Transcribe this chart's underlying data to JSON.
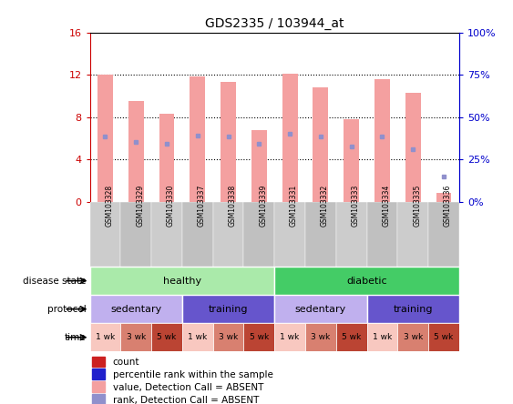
{
  "title": "GDS2335 / 103944_at",
  "samples": [
    "GSM103328",
    "GSM103329",
    "GSM103330",
    "GSM103337",
    "GSM103338",
    "GSM103339",
    "GSM103331",
    "GSM103332",
    "GSM103333",
    "GSM103334",
    "GSM103335",
    "GSM103336"
  ],
  "bar_values": [
    12.0,
    9.5,
    8.3,
    11.8,
    11.3,
    6.8,
    12.1,
    10.8,
    7.8,
    11.6,
    10.3,
    0.9
  ],
  "rank_values": [
    6.2,
    5.7,
    5.5,
    6.3,
    6.2,
    5.5,
    6.4,
    6.2,
    5.2,
    6.2,
    5.0,
    2.4
  ],
  "ylim_left": [
    0,
    16
  ],
  "ylim_right": [
    0,
    100
  ],
  "yticks_left": [
    0,
    4,
    8,
    12,
    16
  ],
  "yticks_right": [
    0,
    25,
    50,
    75,
    100
  ],
  "ytick_labels_left": [
    "0",
    "4",
    "8",
    "12",
    "16"
  ],
  "ytick_labels_right": [
    "0%",
    "25%",
    "50%",
    "75%",
    "100%"
  ],
  "bar_color": "#f4a0a0",
  "rank_color": "#9090cc",
  "disease_state_labels": [
    {
      "label": "healthy",
      "start": 0,
      "end": 6,
      "color": "#aaeaaa"
    },
    {
      "label": "diabetic",
      "start": 6,
      "end": 12,
      "color": "#44cc66"
    }
  ],
  "protocol_labels": [
    {
      "label": "sedentary",
      "start": 0,
      "end": 3,
      "color": "#c0b0ee"
    },
    {
      "label": "training",
      "start": 3,
      "end": 6,
      "color": "#6655cc"
    },
    {
      "label": "sedentary",
      "start": 6,
      "end": 9,
      "color": "#c0b0ee"
    },
    {
      "label": "training",
      "start": 9,
      "end": 12,
      "color": "#6655cc"
    }
  ],
  "time_labels": [
    "1 wk",
    "3 wk",
    "5 wk",
    "1 wk",
    "3 wk",
    "5 wk",
    "1 wk",
    "3 wk",
    "5 wk",
    "1 wk",
    "3 wk",
    "5 wk"
  ],
  "time_colors": [
    "#f8c8c0",
    "#d88070",
    "#bb4433",
    "#f8c8c0",
    "#d88070",
    "#bb4433",
    "#f8c8c0",
    "#d88070",
    "#bb4433",
    "#f8c8c0",
    "#d88070",
    "#bb4433"
  ],
  "legend_items": [
    {
      "color": "#cc2020",
      "label": "count",
      "marker": "s"
    },
    {
      "color": "#2020cc",
      "label": "percentile rank within the sample",
      "marker": "s"
    },
    {
      "color": "#f4a0a0",
      "label": "value, Detection Call = ABSENT",
      "marker": "s"
    },
    {
      "color": "#9090cc",
      "label": "rank, Detection Call = ABSENT",
      "marker": "s"
    }
  ],
  "left_axis_color": "#cc0000",
  "right_axis_color": "#0000cc",
  "sample_bg": "#cccccc",
  "plot_bg": "#ffffff"
}
